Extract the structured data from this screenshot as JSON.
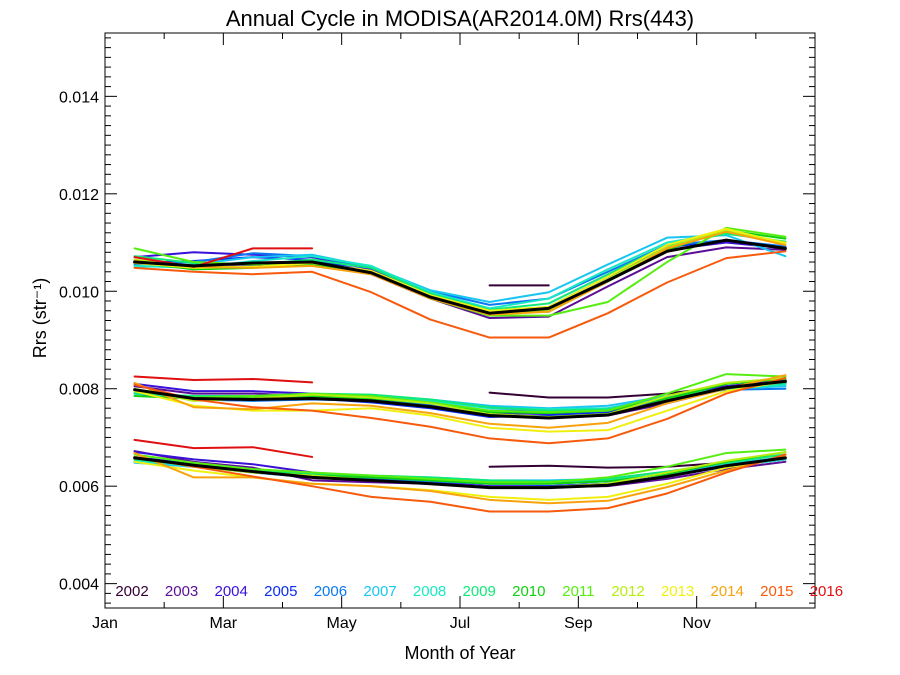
{
  "chart_data": {
    "type": "line",
    "title": "Annual Cycle in MODISA(AR2014.0M) Rrs(443)",
    "xlabel": "Month of Year",
    "ylabel": "Rrs (str⁻¹)",
    "xlim": [
      0,
      12
    ],
    "ylim": [
      0.0035,
      0.0153
    ],
    "x_ticks": [
      {
        "label": "Jan",
        "value": 0
      },
      {
        "label": "Mar",
        "value": 2
      },
      {
        "label": "May",
        "value": 4
      },
      {
        "label": "Jul",
        "value": 6
      },
      {
        "label": "Sep",
        "value": 8
      },
      {
        "label": "Nov",
        "value": 10
      }
    ],
    "y_ticks": [
      {
        "label": "0.004",
        "value": 0.004
      },
      {
        "label": "0.006",
        "value": 0.006
      },
      {
        "label": "0.008",
        "value": 0.008
      },
      {
        "label": "0.010",
        "value": 0.01
      },
      {
        "label": "0.012",
        "value": 0.012
      },
      {
        "label": "0.014",
        "value": 0.014
      }
    ],
    "grid": false,
    "legend_position": "bottom",
    "x": [
      0.5,
      1.5,
      2.5,
      3.5,
      4.5,
      5.5,
      6.5,
      7.5,
      8.5,
      9.5,
      10.5,
      11.5
    ],
    "series": [
      {
        "name": "2002",
        "color": "#330033",
        "width": 2,
        "lines": [
          [
            null,
            null,
            null,
            null,
            null,
            null,
            0.01012,
            0.01012,
            null,
            null,
            null,
            null
          ],
          [
            null,
            null,
            null,
            null,
            null,
            null,
            0.00792,
            0.00782,
            0.00782,
            0.0079,
            0.00805,
            0.00812
          ],
          [
            null,
            null,
            null,
            null,
            null,
            null,
            0.0064,
            0.00642,
            0.00638,
            0.0064,
            0.00648,
            0.00655
          ]
        ]
      },
      {
        "name": "2003",
        "color": "#5a0d96",
        "width": 2,
        "lines": [
          [
            0.01062,
            0.01048,
            0.01052,
            0.01055,
            0.01035,
            0.00985,
            0.00945,
            0.00948,
            0.0101,
            0.0107,
            0.0109,
            0.01085
          ],
          [
            0.00805,
            0.0079,
            0.0079,
            0.00785,
            0.00775,
            0.00765,
            0.00745,
            0.0074,
            0.00745,
            0.0077,
            0.008,
            0.0081
          ],
          [
            0.00672,
            0.0065,
            0.00638,
            0.00612,
            0.00608,
            0.00605,
            0.00598,
            0.00598,
            0.006,
            0.00615,
            0.00635,
            0.0065
          ]
        ]
      },
      {
        "name": "2004",
        "color": "#3a10d8",
        "width": 2,
        "lines": [
          [
            0.0107,
            0.0108,
            0.01075,
            0.0107,
            0.01045,
            0.00995,
            0.0096,
            0.0096,
            0.01025,
            0.01085,
            0.011,
            0.01088
          ],
          [
            0.0081,
            0.00795,
            0.00795,
            0.0079,
            0.00778,
            0.00765,
            0.0075,
            0.00748,
            0.00752,
            0.0078,
            0.00805,
            0.00818
          ],
          [
            0.0067,
            0.00655,
            0.00645,
            0.00628,
            0.00615,
            0.00608,
            0.006,
            0.006,
            0.00605,
            0.0062,
            0.0064,
            0.00655
          ]
        ]
      },
      {
        "name": "2005",
        "color": "#0a2cf0",
        "width": 2,
        "lines": [
          [
            0.01058,
            0.01062,
            0.0107,
            0.01065,
            0.0104,
            0.0099,
            0.00955,
            0.00968,
            0.0103,
            0.0109,
            0.01105,
            0.0109
          ],
          [
            0.00795,
            0.0078,
            0.00778,
            0.0078,
            0.00772,
            0.0076,
            0.00742,
            0.00745,
            0.00752,
            0.0078,
            0.008,
            0.00815
          ],
          [
            0.0066,
            0.00645,
            0.0063,
            0.0062,
            0.00612,
            0.00605,
            0.00598,
            0.006,
            0.00605,
            0.0062,
            0.0064,
            0.00655
          ]
        ]
      },
      {
        "name": "2006",
        "color": "#0a78f2",
        "width": 2,
        "lines": [
          [
            0.01055,
            0.0106,
            0.01078,
            0.01072,
            0.01048,
            0.01,
            0.00972,
            0.00985,
            0.0104,
            0.01095,
            0.01105,
            0.01092
          ],
          [
            0.0079,
            0.00778,
            0.00775,
            0.00778,
            0.00775,
            0.00768,
            0.00755,
            0.00755,
            0.0076,
            0.00782,
            0.00798,
            0.008
          ],
          [
            0.0065,
            0.0064,
            0.00628,
            0.00618,
            0.00615,
            0.0061,
            0.00605,
            0.00605,
            0.0061,
            0.00625,
            0.00642,
            0.00658
          ]
        ]
      },
      {
        "name": "2007",
        "color": "#19c6f2",
        "width": 2,
        "lines": [
          [
            0.0105,
            0.01055,
            0.0107,
            0.01075,
            0.0105,
            0.01002,
            0.00978,
            0.00998,
            0.01055,
            0.0111,
            0.01115,
            0.01072
          ],
          [
            0.0079,
            0.00785,
            0.0078,
            0.00785,
            0.00785,
            0.00778,
            0.00765,
            0.0076,
            0.00765,
            0.00785,
            0.008,
            0.00805
          ],
          [
            0.00648,
            0.0064,
            0.00632,
            0.00625,
            0.0062,
            0.00618,
            0.00612,
            0.00612,
            0.00615,
            0.0063,
            0.00645,
            0.0066
          ]
        ]
      },
      {
        "name": "2008",
        "color": "#19e8c4",
        "width": 2,
        "lines": [
          [
            0.01052,
            0.01048,
            0.01062,
            0.01072,
            0.01052,
            0.00998,
            0.00965,
            0.00985,
            0.01045,
            0.011,
            0.0112,
            0.011
          ],
          [
            0.00792,
            0.0078,
            0.00778,
            0.00782,
            0.00782,
            0.00775,
            0.0076,
            0.00758,
            0.0076,
            0.0078,
            0.008,
            0.00808
          ],
          [
            0.00652,
            0.00642,
            0.00628,
            0.0062,
            0.00618,
            0.00614,
            0.00608,
            0.00608,
            0.00612,
            0.00625,
            0.0064,
            0.00655
          ]
        ]
      },
      {
        "name": "2009",
        "color": "#10e87a",
        "width": 2,
        "lines": [
          [
            0.01072,
            0.01058,
            0.01055,
            0.01065,
            0.01048,
            0.00995,
            0.00962,
            0.00975,
            0.01035,
            0.01095,
            0.01118,
            0.01102
          ],
          [
            0.0079,
            0.00785,
            0.00785,
            0.0079,
            0.00788,
            0.00778,
            0.00762,
            0.00755,
            0.00758,
            0.0078,
            0.00802,
            0.00812
          ],
          [
            0.00655,
            0.00645,
            0.00632,
            0.00625,
            0.00622,
            0.00618,
            0.00612,
            0.0061,
            0.00615,
            0.0063,
            0.00648,
            0.00665
          ]
        ]
      },
      {
        "name": "2010",
        "color": "#10d010",
        "width": 2,
        "lines": [
          [
            0.0106,
            0.01045,
            0.01048,
            0.01055,
            0.0104,
            0.0099,
            0.00955,
            0.00958,
            0.0102,
            0.01085,
            0.01125,
            0.01108
          ],
          [
            0.00785,
            0.0078,
            0.00782,
            0.00785,
            0.0078,
            0.0077,
            0.00752,
            0.0075,
            0.00755,
            0.0078,
            0.0081,
            0.0082
          ],
          [
            0.0066,
            0.0064,
            0.0063,
            0.00622,
            0.00618,
            0.00612,
            0.00605,
            0.00605,
            0.0061,
            0.00625,
            0.0065,
            0.0067
          ]
        ]
      },
      {
        "name": "2011",
        "color": "#55ee10",
        "width": 2,
        "lines": [
          [
            0.01088,
            0.0106,
            0.01055,
            0.0106,
            0.0104,
            0.00985,
            0.0095,
            0.0095,
            0.00978,
            0.0106,
            0.0113,
            0.01112
          ],
          [
            0.00795,
            0.00782,
            0.00785,
            0.0079,
            0.00785,
            0.00772,
            0.00755,
            0.00752,
            0.00755,
            0.0079,
            0.0083,
            0.00825
          ],
          [
            0.00665,
            0.00648,
            0.00635,
            0.00628,
            0.00622,
            0.00615,
            0.00608,
            0.00608,
            0.00618,
            0.0064,
            0.00668,
            0.00675
          ]
        ]
      },
      {
        "name": "2012",
        "color": "#b4ee10",
        "width": 2,
        "lines": [
          [
            0.01065,
            0.0105,
            0.0105,
            0.01058,
            0.0104,
            0.0099,
            0.00958,
            0.00962,
            0.01025,
            0.0109,
            0.01125,
            0.011
          ],
          [
            0.008,
            0.00775,
            0.0078,
            0.00788,
            0.00782,
            0.0077,
            0.00748,
            0.00742,
            0.00748,
            0.00785,
            0.00812,
            0.00822
          ],
          [
            0.0066,
            0.0064,
            0.00628,
            0.00622,
            0.00612,
            0.00605,
            0.00598,
            0.00598,
            0.00605,
            0.00628,
            0.00652,
            0.0067
          ]
        ]
      },
      {
        "name": "2013",
        "color": "#f0f010",
        "width": 2,
        "lines": [
          [
            0.01058,
            0.01048,
            0.0105,
            0.01058,
            0.01042,
            0.00992,
            0.0096,
            0.00968,
            0.0103,
            0.01095,
            0.01128,
            0.01098
          ],
          [
            0.00795,
            0.00765,
            0.00755,
            0.00755,
            0.0076,
            0.00745,
            0.0072,
            0.00712,
            0.00715,
            0.00755,
            0.00795,
            0.00815
          ],
          [
            0.0065,
            0.00632,
            0.00618,
            0.00605,
            0.006,
            0.00592,
            0.00578,
            0.00572,
            0.00578,
            0.00605,
            0.00638,
            0.0066
          ]
        ]
      },
      {
        "name": "2014",
        "color": "#f7a30d",
        "width": 2,
        "lines": [
          [
            0.01062,
            0.0105,
            0.01048,
            0.01052,
            0.01035,
            0.00985,
            0.00952,
            0.00958,
            0.0102,
            0.01088,
            0.01122,
            0.01095
          ],
          [
            0.00812,
            0.00762,
            0.00758,
            0.0077,
            0.00765,
            0.0075,
            0.00728,
            0.0072,
            0.0073,
            0.0077,
            0.008,
            0.00828
          ],
          [
            0.00668,
            0.00618,
            0.00618,
            0.00605,
            0.006,
            0.0059,
            0.00572,
            0.00565,
            0.0057,
            0.00598,
            0.00632,
            0.00662
          ]
        ]
      },
      {
        "name": "2015",
        "color": "#f75a0d",
        "width": 2,
        "lines": [
          [
            0.01048,
            0.0104,
            0.01035,
            0.0104,
            0.00998,
            0.00942,
            0.00905,
            0.00905,
            0.00955,
            0.01018,
            0.01068,
            0.01082
          ],
          [
            0.00808,
            0.00778,
            0.00762,
            0.00755,
            0.0074,
            0.00722,
            0.00698,
            0.00688,
            0.00698,
            0.00738,
            0.0079,
            0.00822
          ],
          [
            0.0066,
            0.0064,
            0.0062,
            0.006,
            0.00578,
            0.00568,
            0.00548,
            0.00548,
            0.00555,
            0.00585,
            0.00628,
            0.00665
          ]
        ]
      },
      {
        "name": "2016",
        "color": "#e01010",
        "width": 2,
        "lines": [
          [
            0.0107,
            0.0105,
            0.01088,
            0.01088,
            null,
            null,
            null,
            null,
            null,
            null,
            null,
            null
          ],
          [
            0.00825,
            0.00818,
            0.0082,
            0.00813,
            null,
            null,
            null,
            null,
            null,
            null,
            null,
            null
          ],
          [
            0.00695,
            0.00678,
            0.0068,
            0.0066,
            null,
            null,
            null,
            null,
            null,
            null,
            null,
            null
          ]
        ]
      },
      {
        "name": "",
        "color": "#000000",
        "width": 3,
        "lines": [
          [
            0.0106,
            0.01052,
            0.01058,
            0.0106,
            0.01038,
            0.00988,
            0.00955,
            0.00965,
            0.01022,
            0.01082,
            0.01105,
            0.01088
          ],
          [
            0.00798,
            0.0078,
            0.00778,
            0.0078,
            0.00775,
            0.00763,
            0.00745,
            0.0074,
            0.00746,
            0.00775,
            0.00802,
            0.00815
          ],
          [
            0.00658,
            0.00643,
            0.0063,
            0.00618,
            0.00612,
            0.00605,
            0.00597,
            0.00597,
            0.00602,
            0.0062,
            0.00642,
            0.00658
          ]
        ]
      }
    ]
  }
}
